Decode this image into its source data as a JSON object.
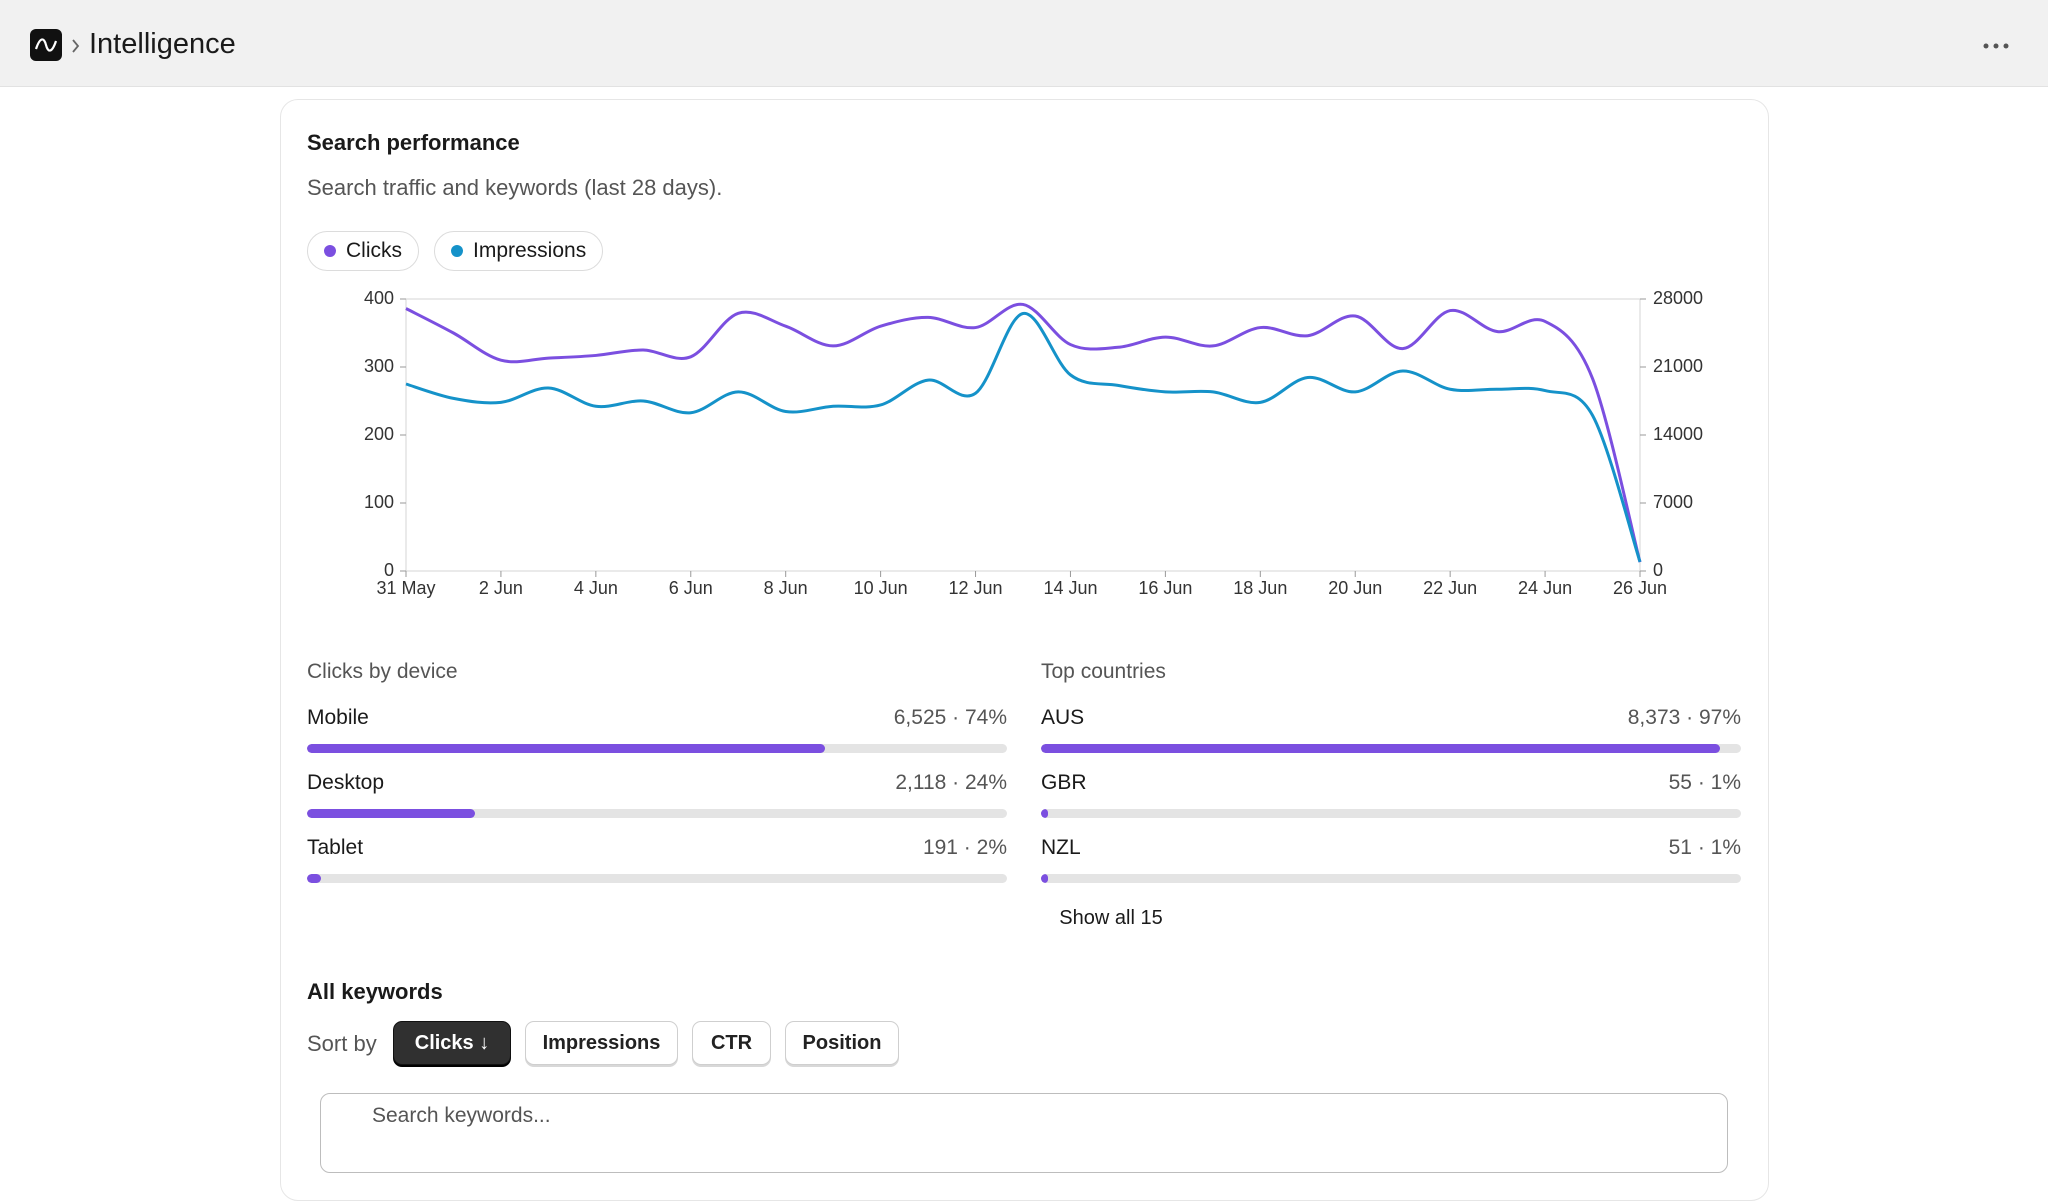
{
  "header": {
    "title": "Intelligence"
  },
  "card": {
    "title": "Search performance",
    "subtitle": "Search traffic and keywords (last 28 days)."
  },
  "chart_data": {
    "type": "line",
    "categories": [
      "31 May",
      null,
      "2 Jun",
      null,
      "4 Jun",
      null,
      "6 Jun",
      null,
      "8 Jun",
      null,
      "10 Jun",
      null,
      "12 Jun",
      null,
      "14 Jun",
      null,
      "16 Jun",
      null,
      "18 Jun",
      null,
      "20 Jun",
      null,
      "22 Jun",
      null,
      "24 Jun",
      null,
      "26 Jun"
    ],
    "series": [
      {
        "name": "Clicks",
        "color": "#7b4fe0",
        "values": [
          386,
          350,
          310,
          313,
          317,
          325,
          315,
          379,
          360,
          331,
          360,
          373,
          358,
          392,
          333,
          329,
          344,
          331,
          358,
          346,
          375,
          327,
          383,
          352,
          367,
          283,
          13
        ]
      },
      {
        "name": "Impressions",
        "color": "#1592c9",
        "axis": "y2",
        "values": [
          19250,
          17770,
          17360,
          18840,
          16960,
          17500,
          16290,
          18440,
          16420,
          16960,
          17090,
          19650,
          18300,
          26510,
          20190,
          19110,
          18440,
          18440,
          17360,
          19920,
          18440,
          20590,
          18710,
          18710,
          18570,
          16020,
          940
        ]
      }
    ],
    "ylim": [
      0,
      400
    ],
    "yticks": [
      0,
      100,
      200,
      300,
      400
    ],
    "y2lim": [
      0,
      28000
    ],
    "y2ticks": [
      0,
      7000,
      14000,
      21000,
      28000
    ]
  },
  "devices": {
    "title": "Clicks by device",
    "items": [
      {
        "name": "Mobile",
        "label": "6,525 · 74%",
        "share": 74
      },
      {
        "name": "Desktop",
        "label": "2,118 · 24%",
        "share": 24
      },
      {
        "name": "Tablet",
        "label": "191 · 2%",
        "share": 2
      }
    ]
  },
  "countries": {
    "title": "Top countries",
    "items": [
      {
        "name": "AUS",
        "label": "8,373 · 97%",
        "share": 97
      },
      {
        "name": "GBR",
        "label": "55 · 1%",
        "share": 1
      },
      {
        "name": "NZL",
        "label": "51 · 1%",
        "share": 1
      }
    ],
    "show_all": "Show all 15"
  },
  "keywords": {
    "title": "All keywords",
    "sort_label": "Sort by",
    "sort_options": [
      "Clicks ↓",
      "Impressions",
      "CTR",
      "Position"
    ],
    "search_placeholder": "Search keywords..."
  }
}
